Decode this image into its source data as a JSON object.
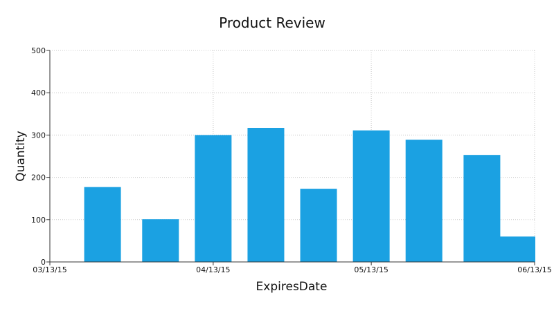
{
  "chart_data": {
    "type": "bar",
    "title": "Product Review",
    "xlabel": "ExpiresDate",
    "ylabel": "Quantity",
    "ylim": [
      0,
      500
    ],
    "yticks": [
      0,
      100,
      200,
      300,
      400,
      500
    ],
    "xlim": [
      "2015-03-13",
      "2015-06-13"
    ],
    "xticks": [
      {
        "date": "2015-03-13",
        "label": "03/13/15"
      },
      {
        "date": "2015-04-13",
        "label": "04/13/15"
      },
      {
        "date": "2015-05-13",
        "label": "05/13/15"
      },
      {
        "date": "2015-06-13",
        "label": "06/13/15"
      }
    ],
    "grid": true,
    "bar_color": "#1BA1E2",
    "points": [
      {
        "date": "2015-03-23",
        "value": 177
      },
      {
        "date": "2015-04-03",
        "value": 101
      },
      {
        "date": "2015-04-13",
        "value": 300
      },
      {
        "date": "2015-04-23",
        "value": 317
      },
      {
        "date": "2015-05-03",
        "value": 173
      },
      {
        "date": "2015-05-13",
        "value": 311
      },
      {
        "date": "2015-05-23",
        "value": 289
      },
      {
        "date": "2015-06-03",
        "value": 253
      },
      {
        "date": "2015-06-13",
        "value": 60
      }
    ]
  }
}
